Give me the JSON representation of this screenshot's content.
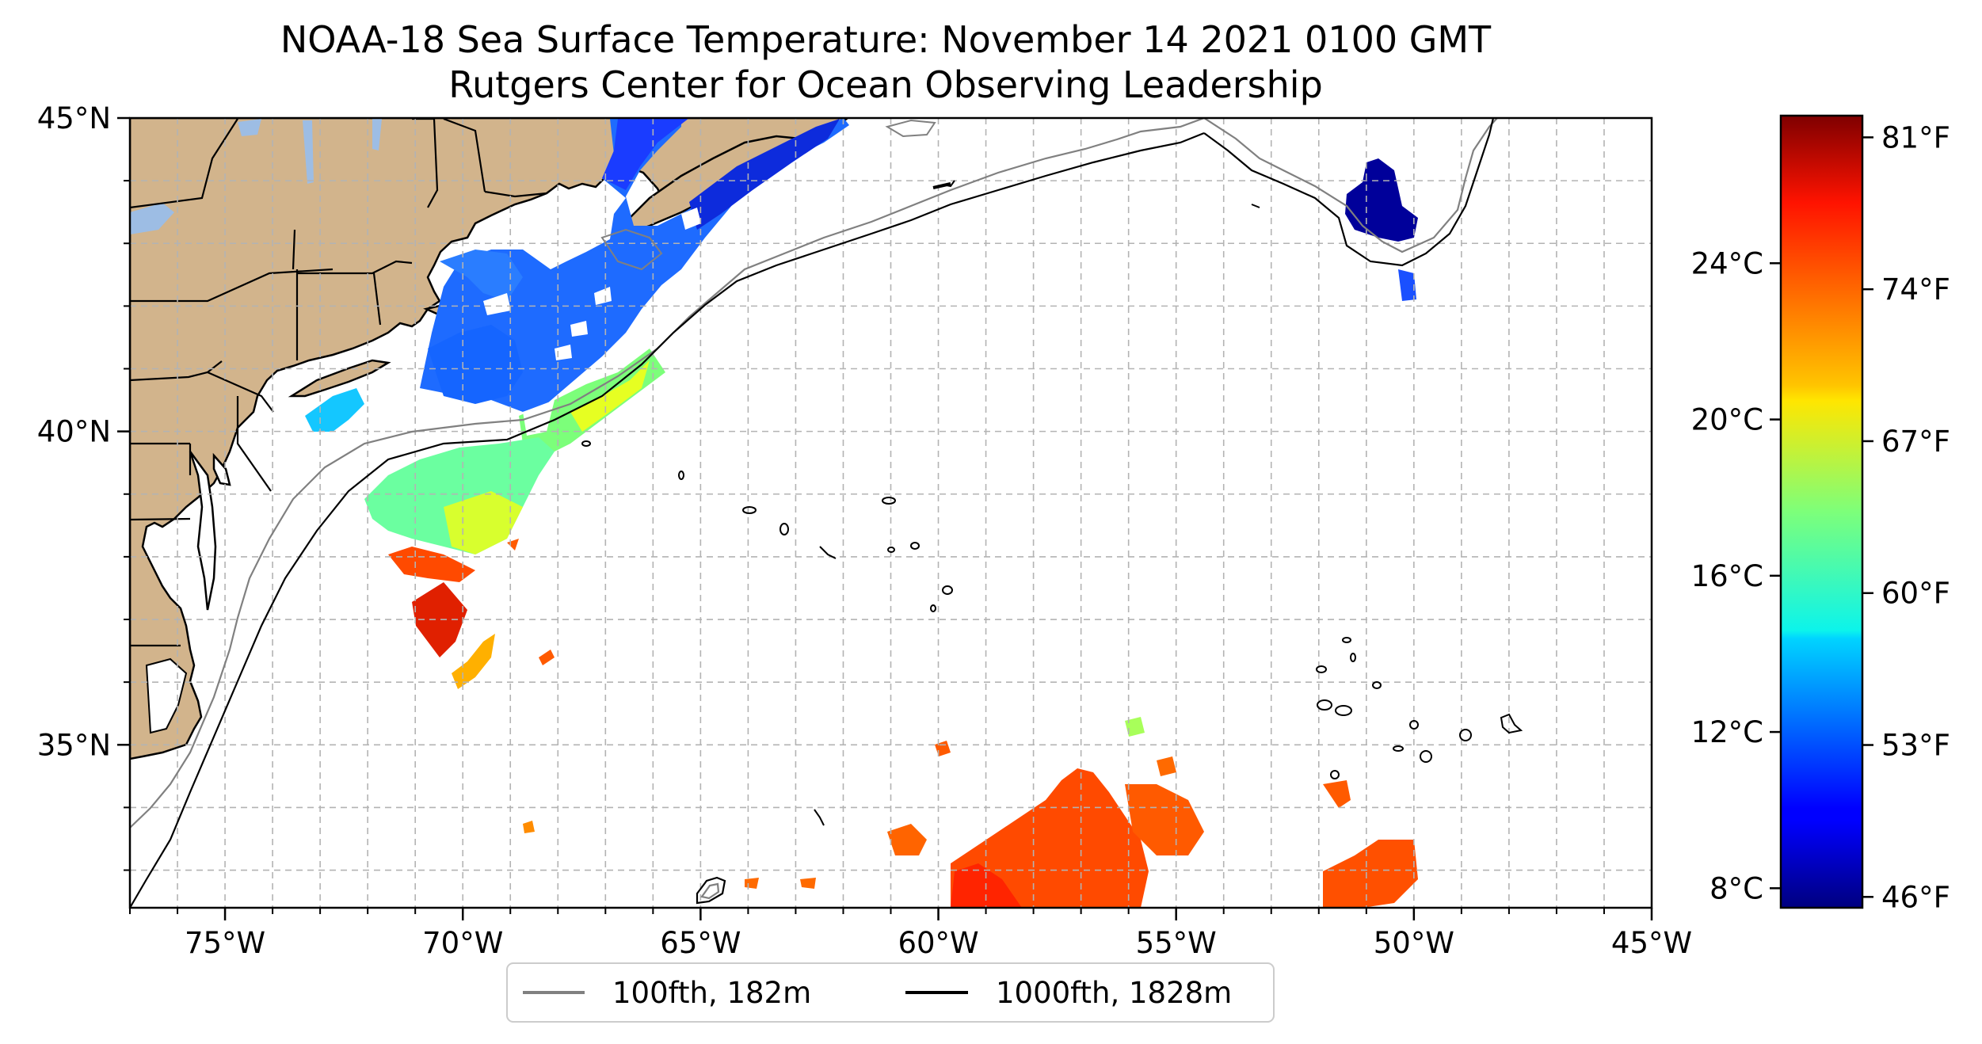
{
  "title": "NOAA-18 Sea Surface Temperature: November 14 2021 0100 GMT",
  "subtitle": "Rutgers Center for Ocean Observing Leadership",
  "map": {
    "lon_range": [
      -77,
      -45
    ],
    "lat_range": [
      32.4,
      45
    ],
    "lon_ticks": [
      {
        "value": -75,
        "label": "75°W"
      },
      {
        "value": -70,
        "label": "70°W"
      },
      {
        "value": -65,
        "label": "65°W"
      },
      {
        "value": -60,
        "label": "60°W"
      },
      {
        "value": -55,
        "label": "55°W"
      },
      {
        "value": -50,
        "label": "50°W"
      },
      {
        "value": -45,
        "label": "45°W"
      }
    ],
    "lat_ticks": [
      {
        "value": 45,
        "label": "45°N"
      },
      {
        "value": 40,
        "label": "40°N"
      },
      {
        "value": 35,
        "label": "35°N"
      }
    ],
    "grid": "on",
    "land_color": "#d2b48c",
    "water_body_color": "#9dbde4"
  },
  "legend": {
    "placement": "bottom-center",
    "items": [
      {
        "label": "100fth, 182m",
        "color": "#808080"
      },
      {
        "label": "1000fth, 1828m",
        "color": "#000000"
      }
    ]
  },
  "colorbar": {
    "colormap": "jet",
    "range_f": [
      45.5,
      82
    ],
    "fahrenheit_ticks": [
      {
        "value": 81,
        "label": "81°F"
      },
      {
        "value": 74,
        "label": "74°F"
      },
      {
        "value": 67,
        "label": "67°F"
      },
      {
        "value": 60,
        "label": "60°F"
      },
      {
        "value": 53,
        "label": "53°F"
      },
      {
        "value": 46,
        "label": "46°F"
      }
    ],
    "celsius_ticks": [
      {
        "value": 24,
        "label": "24°C"
      },
      {
        "value": 20,
        "label": "20°C"
      },
      {
        "value": 16,
        "label": "16°C"
      },
      {
        "value": 12,
        "label": "12°C"
      },
      {
        "value": 8,
        "label": "8°C"
      }
    ]
  }
}
